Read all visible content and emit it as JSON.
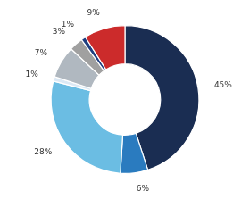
{
  "chart_data": {
    "type": "doughnut",
    "values": [
      45,
      6,
      28,
      1,
      7,
      3,
      1,
      9
    ],
    "value_labels": [
      "45%",
      "6%",
      "28%",
      "1%",
      "7%",
      "3%",
      "1%",
      "9%"
    ],
    "colors": [
      "#1a2d52",
      "#2a7bbf",
      "#6bbde3",
      "#dce9f5",
      "#b0b8c0",
      "#a0a0a0",
      "#1f3f80",
      "#cc2b2b"
    ],
    "data_labels": true
  }
}
